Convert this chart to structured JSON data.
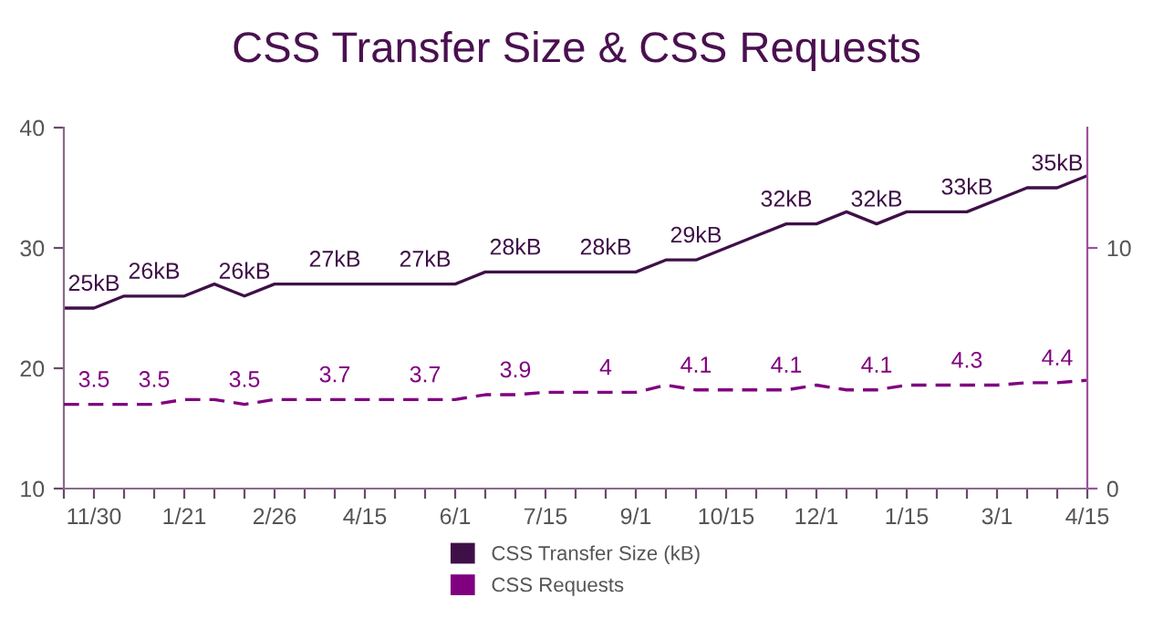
{
  "chart_data": {
    "type": "line",
    "title": "CSS Transfer Size & CSS Requests",
    "categories": [
      null,
      "11/30",
      null,
      null,
      "1/21",
      null,
      null,
      "2/26",
      null,
      null,
      "4/15",
      null,
      null,
      "6/1",
      null,
      null,
      "7/15",
      null,
      null,
      "9/1",
      null,
      null,
      "10/15",
      null,
      null,
      "12/1",
      null,
      null,
      "1/15",
      null,
      null,
      "3/1",
      null,
      null,
      "4/15"
    ],
    "series": [
      {
        "name": "CSS Transfer Size (kB)",
        "color": "#3f1048",
        "line_style": "solid",
        "values": [
          25,
          25,
          26,
          26,
          26,
          27,
          26,
          27,
          27,
          27,
          27,
          27,
          27,
          27,
          28,
          28,
          28,
          28,
          28,
          28,
          29,
          29,
          30,
          31,
          32,
          32,
          33,
          32,
          33,
          33,
          33,
          34,
          35,
          35,
          36
        ],
        "value_labels": [
          null,
          "25kB",
          null,
          "26kB",
          null,
          null,
          "26kB",
          null,
          null,
          "27kB",
          null,
          null,
          "27kB",
          null,
          null,
          "28kB",
          null,
          null,
          "28kB",
          null,
          null,
          "29kB",
          null,
          null,
          "32kB",
          null,
          null,
          "32kB",
          null,
          null,
          "33kB",
          null,
          null,
          "35kB",
          null
        ]
      },
      {
        "name": "CSS Requests",
        "color": "#800080",
        "axis": "y2",
        "line_style": "dashed",
        "values": [
          3.5,
          3.5,
          3.5,
          3.5,
          3.7,
          3.7,
          3.5,
          3.7,
          3.7,
          3.7,
          3.7,
          3.7,
          3.7,
          3.7,
          3.9,
          3.9,
          4.0,
          4.0,
          4.0,
          4.0,
          4.3,
          4.1,
          4.1,
          4.1,
          4.1,
          4.3,
          4.1,
          4.1,
          4.3,
          4.3,
          4.3,
          4.3,
          4.4,
          4.4,
          4.5
        ],
        "value_labels": [
          null,
          "3.5",
          null,
          "3.5",
          null,
          null,
          "3.5",
          null,
          null,
          "3.7",
          null,
          null,
          "3.7",
          null,
          null,
          "3.9",
          null,
          null,
          "4",
          null,
          null,
          "4.1",
          null,
          null,
          "4.1",
          null,
          null,
          "4.1",
          null,
          null,
          "4.3",
          null,
          null,
          "4.4",
          null
        ]
      }
    ],
    "ylim": [
      10,
      40
    ],
    "yticks": [
      10,
      20,
      30,
      40
    ],
    "y2lim": [
      0,
      15
    ],
    "y2ticks": [
      0,
      10
    ],
    "grid": false,
    "legend": "bottom",
    "marker": "none"
  }
}
